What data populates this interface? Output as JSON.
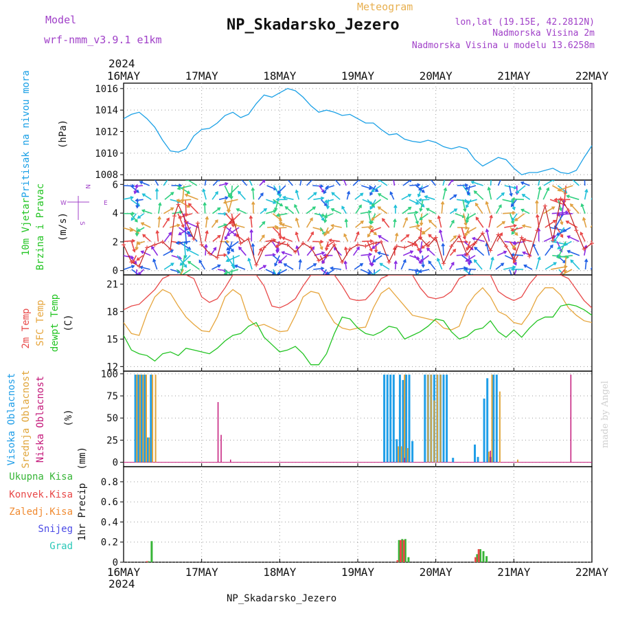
{
  "header": {
    "model_label": "Model",
    "model_name": "wrf-nmm_v3.9.1  e1km",
    "chart_kind": "Meteogram",
    "location_title": "NP_Skadarsko_Jezero",
    "coords": "lon,lat (19.15E, 42.2812N)",
    "altitude": "Nadmorska Visina 2m",
    "model_altitude": "Nadmorska Visina u modelu 13.6258m",
    "footer_title": "NP_Skadarsko_Jezero",
    "credit": "made by Angel"
  },
  "colors": {
    "pressure": "#1aa0e6",
    "temp2m": "#e84848",
    "sfc_temp": "#e6a53c",
    "dewpt": "#22c422",
    "high_cloud": "#1f9ee8",
    "mid_cloud": "#e0a53a",
    "low_cloud": "#c4187a",
    "total_precip": "#37b537",
    "conv_precip": "#e84848",
    "frozen_precip": "#f08a30",
    "snow": "#4a4ae6",
    "hail": "#2ac8b8",
    "purple_text": "#a040c8",
    "orange_text": "#e8b050"
  },
  "chart_data": [
    {
      "type": "line",
      "panel": "pressure",
      "ylabel_name": "Pritisak na nivou mora",
      "unit": "(hPa)",
      "ylim": [
        1007.5,
        1016.5
      ],
      "yticks": [
        1008,
        1010,
        1012,
        1014,
        1016
      ],
      "series": [
        {
          "x": [
            0,
            0.1,
            0.2,
            0.3,
            0.4,
            0.5,
            0.6,
            0.7,
            0.8,
            0.9,
            1,
            1.1,
            1.2,
            1.3,
            1.4,
            1.5,
            1.6,
            1.7,
            1.8,
            1.9,
            2,
            2.1,
            2.2,
            2.3,
            2.4,
            2.5,
            2.6,
            2.7,
            2.8,
            2.9,
            3,
            3.1,
            3.2,
            3.3,
            3.4,
            3.5,
            3.6,
            3.7,
            3.8,
            3.9,
            4,
            4.1,
            4.2,
            4.3,
            4.4,
            4.5,
            4.6,
            4.7,
            4.8,
            4.9,
            5,
            5.1,
            5.2,
            5.3,
            5.4,
            5.5,
            5.6,
            5.7,
            5.8,
            5.9,
            6
          ],
          "values": [
            1013.2,
            1013.6,
            1013.8,
            1013.2,
            1012.4,
            1011.2,
            1010.2,
            1010.1,
            1010.4,
            1011.6,
            1012.2,
            1012.3,
            1012.8,
            1013.5,
            1013.8,
            1013.3,
            1013.6,
            1014.6,
            1015.4,
            1015.2,
            1015.6,
            1016,
            1015.8,
            1015.2,
            1014.4,
            1013.8,
            1014,
            1013.8,
            1013.5,
            1013.6,
            1013.2,
            1012.8,
            1012.8,
            1012.2,
            1011.7,
            1011.8,
            1011.3,
            1011.1,
            1011,
            1011.2,
            1011,
            1010.6,
            1010.4,
            1010.6,
            1010.4,
            1009.4,
            1008.8,
            1009.2,
            1009.6,
            1009.4,
            1008.6,
            1008,
            1008.2,
            1008.2,
            1008.4,
            1008.6,
            1008.2,
            1008.1,
            1008.4,
            1009.6,
            1010.7
          ]
        }
      ]
    },
    {
      "type": "line",
      "panel": "wind",
      "ylabel_name": "10m Vjetar",
      "ylabel_name2": "Brzina i Pravac",
      "unit": "(m/s)",
      "ylim": [
        -0.3,
        6.3
      ],
      "yticks": [
        0,
        2,
        4,
        6
      ],
      "compass": {
        "n": "N",
        "s": "S",
        "w": "W",
        "e": "E"
      },
      "series": [
        {
          "x": [
            0,
            0.1,
            0.2,
            0.3,
            0.4,
            0.5,
            0.6,
            0.65,
            0.7,
            0.8,
            0.9,
            0.95,
            1,
            1.1,
            1.2,
            1.3,
            1.4,
            1.5,
            1.6,
            1.7,
            1.8,
            1.9,
            2,
            2.1,
            2.2,
            2.3,
            2.4,
            2.5,
            2.6,
            2.7,
            2.8,
            2.9,
            3,
            3.1,
            3.2,
            3.3,
            3.4,
            3.5,
            3.6,
            3.7,
            3.8,
            3.9,
            4,
            4.1,
            4.2,
            4.3,
            4.4,
            4.5,
            4.6,
            4.7,
            4.8,
            4.9,
            5,
            5.1,
            5.2,
            5.3,
            5.4,
            5.5,
            5.6,
            5.7,
            5.8,
            5.9,
            6
          ],
          "values": [
            1.8,
            0.6,
            0.3,
            1.6,
            1.8,
            2.0,
            1.5,
            3.8,
            4.6,
            3.4,
            2.2,
            3.3,
            1.8,
            1.2,
            0.9,
            3.0,
            3.6,
            1.9,
            2.2,
            0.4,
            1.6,
            2.1,
            1.9,
            1.8,
            1.3,
            1.9,
            1.6,
            0.7,
            1.0,
            1.8,
            0.6,
            1.5,
            1.8,
            1.7,
            1.9,
            2.0,
            0.6,
            1.7,
            1.6,
            1.8,
            2.3,
            1.7,
            2.3,
            0.5,
            1.7,
            2.4,
            1.1,
            1.9,
            2.6,
            1.4,
            2.5,
            1.7,
            0.8,
            2.3,
            1.0,
            2.8,
            4.5,
            2.1,
            5.0,
            4.2,
            2.8,
            1.5,
            1.9
          ]
        }
      ]
    },
    {
      "type": "line",
      "panel": "temperature",
      "ylabel_name": "2m Temp",
      "ylabel_name2": "SFC Temp",
      "ylabel_name3": "dewpt Temp",
      "unit": "(C)",
      "ylim": [
        11.5,
        22
      ],
      "yticks": [
        12,
        15,
        18,
        21
      ],
      "series": [
        {
          "key": "temp2m",
          "x": [
            0,
            0.1,
            0.2,
            0.3,
            0.4,
            0.5,
            0.6,
            0.7,
            0.8,
            0.9,
            1,
            1.1,
            1.2,
            1.3,
            1.4,
            1.5,
            1.6,
            1.7,
            1.8,
            1.9,
            2,
            2.1,
            2.2,
            2.3,
            2.4,
            2.5,
            2.6,
            2.7,
            2.8,
            2.9,
            3,
            3.1,
            3.2,
            3.3,
            3.4,
            3.5,
            3.6,
            3.7,
            3.8,
            3.9,
            4,
            4.1,
            4.2,
            4.3,
            4.4,
            4.5,
            4.6,
            4.7,
            4.8,
            4.9,
            5,
            5.1,
            5.2,
            5.3,
            5.4,
            5.5,
            5.6,
            5.7,
            5.8,
            5.9,
            6
          ],
          "values": [
            18.2,
            18.6,
            18.8,
            19.6,
            20.4,
            21.6,
            22,
            22,
            22,
            21.6,
            19.6,
            19,
            19.4,
            20.6,
            22,
            22,
            22,
            22,
            20.8,
            18.6,
            18.4,
            18.8,
            19.4,
            20.8,
            22,
            22,
            22,
            22,
            20.8,
            19.4,
            19.2,
            19.3,
            20.2,
            21.6,
            22,
            22,
            22,
            22,
            20.6,
            19.6,
            19.4,
            19.6,
            20.2,
            21.6,
            22,
            22,
            22,
            22,
            20.2,
            19.6,
            19.2,
            19.6,
            21,
            22,
            22,
            22,
            22,
            21.6,
            20.4,
            19.2,
            18.4
          ]
        },
        {
          "key": "sfc",
          "x": [
            0,
            0.1,
            0.2,
            0.3,
            0.4,
            0.5,
            0.6,
            0.7,
            0.8,
            0.9,
            1,
            1.1,
            1.2,
            1.3,
            1.4,
            1.5,
            1.6,
            1.7,
            1.8,
            1.9,
            2,
            2.1,
            2.2,
            2.3,
            2.4,
            2.5,
            2.6,
            2.7,
            2.8,
            2.9,
            3,
            3.1,
            3.2,
            3.3,
            3.4,
            3.5,
            3.6,
            3.7,
            3.8,
            3.9,
            4,
            4.1,
            4.2,
            4.3,
            4.4,
            4.5,
            4.6,
            4.7,
            4.8,
            4.9,
            5,
            5.1,
            5.2,
            5.3,
            5.4,
            5.5,
            5.6,
            5.7,
            5.8,
            5.9,
            6
          ],
          "values": [
            16.8,
            15.6,
            15.4,
            17.8,
            19.6,
            20.4,
            20,
            18.6,
            17.4,
            16.6,
            15.9,
            15.8,
            17.4,
            19.6,
            20.4,
            19.8,
            17.2,
            16.4,
            16.6,
            16.2,
            15.8,
            15.9,
            17.6,
            19.6,
            20.2,
            20,
            18.2,
            16.8,
            16.2,
            16,
            16.2,
            16.3,
            18.4,
            20,
            20.6,
            19.6,
            18.6,
            17.6,
            17.4,
            17.2,
            17,
            16.2,
            16,
            16.4,
            18.6,
            19.8,
            20.6,
            19.6,
            18,
            17.6,
            16.8,
            16.6,
            17.8,
            19.6,
            20.6,
            20.6,
            19.8,
            18.4,
            17.6,
            17,
            16.8
          ]
        },
        {
          "key": "dewpt",
          "x": [
            0,
            0.1,
            0.2,
            0.3,
            0.4,
            0.5,
            0.6,
            0.7,
            0.8,
            0.9,
            1,
            1.1,
            1.2,
            1.3,
            1.4,
            1.5,
            1.6,
            1.7,
            1.8,
            1.9,
            2,
            2.1,
            2.2,
            2.3,
            2.4,
            2.5,
            2.6,
            2.7,
            2.8,
            2.9,
            3,
            3.1,
            3.2,
            3.3,
            3.4,
            3.5,
            3.6,
            3.7,
            3.8,
            3.9,
            4,
            4.1,
            4.2,
            4.3,
            4.4,
            4.5,
            4.6,
            4.7,
            4.8,
            4.9,
            5,
            5.1,
            5.2,
            5.3,
            5.4,
            5.5,
            5.6,
            5.7,
            5.8,
            5.9,
            6
          ],
          "values": [
            15.4,
            13.8,
            13.4,
            13.2,
            12.6,
            13.4,
            13.6,
            13.2,
            14,
            13.8,
            13.6,
            13.4,
            14,
            14.8,
            15.4,
            15.6,
            16.4,
            16.8,
            15.2,
            14.4,
            13.6,
            13.8,
            14.2,
            13.4,
            12.2,
            12.2,
            13.4,
            15.6,
            17.4,
            17.2,
            16.2,
            15.6,
            15.4,
            15.8,
            16.4,
            16.2,
            15,
            15.4,
            15.8,
            16.4,
            17.2,
            17,
            15.8,
            15,
            15.3,
            16,
            16.2,
            17,
            15.8,
            15.2,
            16,
            15.2,
            16.2,
            17,
            17.4,
            17.4,
            18.6,
            18.8,
            18.6,
            18.2,
            17.6
          ]
        }
      ]
    },
    {
      "type": "bar",
      "panel": "cloud",
      "ylabel_name": "Visoka Oblacnost",
      "ylabel_name2": "Srednja Oblacnost",
      "ylabel_name3": "Niska Oblacnost",
      "unit": "(%)",
      "ylim": [
        -5,
        103
      ],
      "yticks": [
        0,
        25,
        50,
        75,
        100
      ],
      "series": [
        {
          "key": "high",
          "x": [
            0.15,
            0.19,
            0.23,
            0.27,
            0.31,
            0.35,
            3.34,
            3.38,
            3.42,
            3.46,
            3.5,
            3.54,
            3.58,
            3.62,
            3.66,
            3.7,
            3.86,
            3.9,
            3.94,
            3.98,
            4.02,
            4.06,
            4.1,
            4.14,
            4.22,
            4.5,
            4.54,
            4.62,
            4.66,
            4.7,
            4.74,
            4.78
          ],
          "values": [
            99,
            99,
            99,
            99,
            28,
            99,
            99,
            99,
            99,
            99,
            26,
            99,
            93,
            99,
            99,
            24,
            99,
            99,
            99,
            99,
            99,
            99,
            99,
            99,
            5,
            20,
            6,
            72,
            95,
            6,
            99,
            99
          ]
        },
        {
          "key": "mid",
          "x": [
            0.17,
            0.21,
            0.25,
            0.29,
            0.33,
            0.37,
            0.41,
            3.52,
            3.56,
            3.6,
            3.64,
            3.9,
            3.94,
            3.98,
            4.02,
            4.06,
            4.68,
            4.72,
            4.82,
            5.05
          ],
          "values": [
            99,
            99,
            99,
            99,
            28,
            99,
            99,
            18,
            18,
            99,
            16,
            99,
            99,
            70,
            99,
            99,
            12,
            99,
            80,
            3
          ]
        },
        {
          "key": "low",
          "x": [
            1.21,
            1.25,
            1.37,
            3.6,
            4.7,
            5.73
          ],
          "values": [
            68,
            31,
            3,
            5,
            13,
            99
          ]
        }
      ]
    },
    {
      "type": "bar",
      "panel": "precip",
      "ylabel_name": "1hr Precip",
      "unit": "(mm)",
      "ylim": [
        0,
        0.95
      ],
      "yticks": [
        0,
        0.2,
        0.4,
        0.6,
        0.8
      ],
      "legend_labels": [
        "Ukupna Kisa",
        "Konvek.Kisa",
        "Zaledj.Kisa",
        "Snijeg",
        "Grad"
      ],
      "series": [
        {
          "key": "total",
          "x": [
            0.32,
            0.36,
            3.53,
            3.57,
            3.61,
            3.65,
            4.53,
            4.57,
            4.61,
            4.65
          ],
          "values": [
            0.01,
            0.21,
            0.22,
            0.23,
            0.23,
            0.05,
            0.08,
            0.13,
            0.11,
            0.06
          ]
        },
        {
          "key": "conv",
          "x": [
            0.3,
            3.51,
            3.55,
            3.59,
            4.51,
            4.55
          ],
          "values": [
            0.01,
            0.02,
            0.22,
            0.22,
            0.05,
            0.13
          ]
        }
      ]
    }
  ],
  "time_axis": {
    "year": "2024",
    "ticks": [
      "16MAY",
      "17MAY",
      "18MAY",
      "19MAY",
      "20MAY",
      "21MAY",
      "22MAY"
    ],
    "xlim": [
      0,
      6
    ]
  }
}
